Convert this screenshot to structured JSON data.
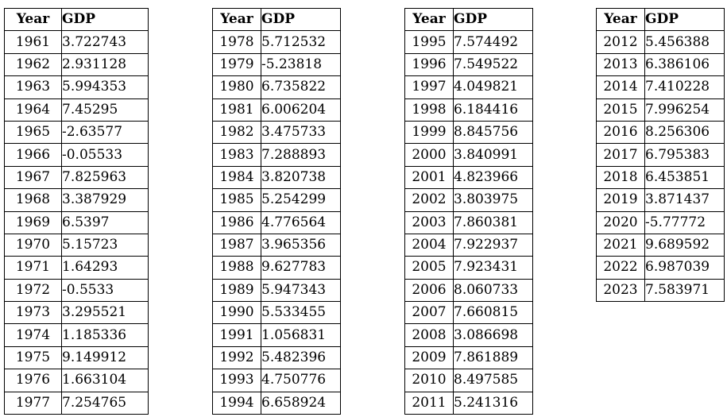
{
  "tables": [
    {
      "name": "gdp-table-1961-1977",
      "headers": [
        "Year",
        "GDP"
      ],
      "rows": [
        [
          "1961",
          "3.722743"
        ],
        [
          "1962",
          "2.931128"
        ],
        [
          "1963",
          "5.994353"
        ],
        [
          "1964",
          "7.45295"
        ],
        [
          "1965",
          "-2.63577"
        ],
        [
          "1966",
          "-0.05533"
        ],
        [
          "1967",
          "7.825963"
        ],
        [
          "1968",
          "3.387929"
        ],
        [
          "1969",
          "6.5397"
        ],
        [
          "1970",
          "5.15723"
        ],
        [
          "1971",
          "1.64293"
        ],
        [
          "1972",
          "-0.5533"
        ],
        [
          "1973",
          "3.295521"
        ],
        [
          "1974",
          "1.185336"
        ],
        [
          "1975",
          "9.149912"
        ],
        [
          "1976",
          "1.663104"
        ],
        [
          "1977",
          "7.254765"
        ]
      ]
    },
    {
      "name": "gdp-table-1978-1994",
      "headers": [
        "Year",
        "GDP"
      ],
      "rows": [
        [
          "1978",
          "5.712532"
        ],
        [
          "1979",
          "-5.23818"
        ],
        [
          "1980",
          "6.735822"
        ],
        [
          "1981",
          "6.006204"
        ],
        [
          "1982",
          "3.475733"
        ],
        [
          "1983",
          "7.288893"
        ],
        [
          "1984",
          "3.820738"
        ],
        [
          "1985",
          "5.254299"
        ],
        [
          "1986",
          "4.776564"
        ],
        [
          "1987",
          "3.965356"
        ],
        [
          "1988",
          "9.627783"
        ],
        [
          "1989",
          "5.947343"
        ],
        [
          "1990",
          "5.533455"
        ],
        [
          "1991",
          "1.056831"
        ],
        [
          "1992",
          "5.482396"
        ],
        [
          "1993",
          "4.750776"
        ],
        [
          "1994",
          "6.658924"
        ]
      ]
    },
    {
      "name": "gdp-table-1995-2011",
      "headers": [
        "Year",
        "GDP"
      ],
      "rows": [
        [
          "1995",
          "7.574492"
        ],
        [
          "1996",
          "7.549522"
        ],
        [
          "1997",
          "4.049821"
        ],
        [
          "1998",
          "6.184416"
        ],
        [
          "1999",
          "8.845756"
        ],
        [
          "2000",
          "3.840991"
        ],
        [
          "2001",
          "4.823966"
        ],
        [
          "2002",
          "3.803975"
        ],
        [
          "2003",
          "7.860381"
        ],
        [
          "2004",
          "7.922937"
        ],
        [
          "2005",
          "7.923431"
        ],
        [
          "2006",
          "8.060733"
        ],
        [
          "2007",
          "7.660815"
        ],
        [
          "2008",
          "3.086698"
        ],
        [
          "2009",
          "7.861889"
        ],
        [
          "2010",
          "8.497585"
        ],
        [
          "2011",
          "5.241316"
        ]
      ]
    },
    {
      "name": "gdp-table-2012-2023",
      "headers": [
        "Year",
        "GDP"
      ],
      "rows": [
        [
          "2012",
          "5.456388"
        ],
        [
          "2013",
          "6.386106"
        ],
        [
          "2014",
          "7.410228"
        ],
        [
          "2015",
          "7.996254"
        ],
        [
          "2016",
          "8.256306"
        ],
        [
          "2017",
          "6.795383"
        ],
        [
          "2018",
          "6.453851"
        ],
        [
          "2019",
          "3.871437"
        ],
        [
          "2020",
          "-5.77772"
        ],
        [
          "2021",
          "9.689592"
        ],
        [
          "2022",
          "6.987039"
        ],
        [
          "2023",
          "7.583971"
        ]
      ]
    }
  ],
  "colors": {
    "border": "#000000",
    "background": "#ffffff",
    "text": "#000000"
  }
}
